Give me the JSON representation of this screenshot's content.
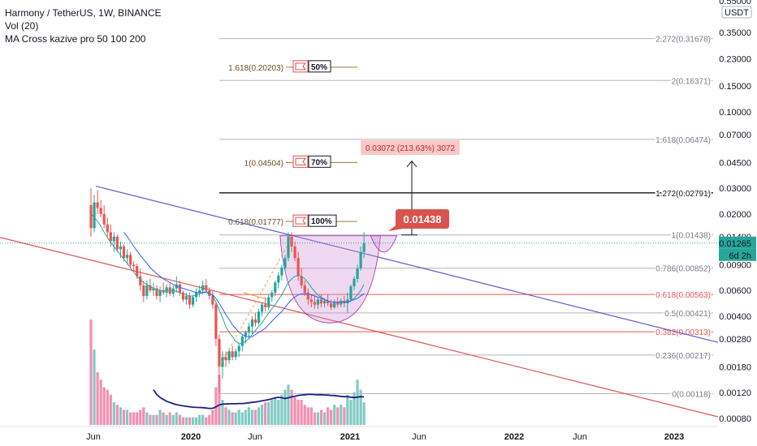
{
  "legend": {
    "title": "Harmony / TetherUS, 1W, BINANCE",
    "vol": "Vol (20)",
    "ma": "MA Cross kazive pro 50 100 200"
  },
  "colors": {
    "up": "#26a69a",
    "down": "#ef5350",
    "vol_up": "#80cbc4",
    "vol_down": "#f48fb1",
    "blue_trend": "#5b5bc8",
    "red_trend": "#d9534f",
    "fib_line": "#b2b5be",
    "fib_text": "#787b86",
    "cup_fill": "#ce93d8",
    "label_bg": "#d9534f",
    "proj_bg": "#f8c8c8",
    "proj_text": "#c62828"
  },
  "price_axis": {
    "currency": "USDT",
    "ticks": [
      "0.35000",
      "0.23000",
      "0.15000",
      "0.10000",
      "0.07000",
      "0.04500",
      "0.03000",
      "0.02000",
      "0.01400",
      "0.00900",
      "0.00600",
      "0.00400",
      "0.00280",
      "0.00180",
      "0.00120",
      "0.00080"
    ],
    "current_price": "0.01265",
    "countdown": "6d 2h",
    "top_partial": "0.55000"
  },
  "time_axis": {
    "ticks": [
      "Jun",
      "2020",
      "Jun",
      "2021",
      "Jun",
      "2022",
      "Jun",
      "2023"
    ]
  },
  "fib_levels": [
    {
      "label": "2.272(0.31678)",
      "price": 0.31678
    },
    {
      "label": "2(0.16371)",
      "price": 0.16371
    },
    {
      "label": "1.618(0.06474)",
      "price": 0.06474
    },
    {
      "label": "1.272(0.02791)",
      "price": 0.02791,
      "bold": true
    },
    {
      "label": "1(0.01438)",
      "price": 0.01438
    },
    {
      "label": "0.786(0.00852)",
      "price": 0.00852
    },
    {
      "label": "0.618(0.00563)",
      "price": 0.00563,
      "red": true
    },
    {
      "label": "0.5(0.00421)",
      "price": 0.00421
    },
    {
      "label": "0.382(0.00313)",
      "price": 0.00313,
      "red": true
    },
    {
      "label": "0.236(0.00217)",
      "price": 0.00217
    },
    {
      "label": "0(0.00118)",
      "price": 0.00118
    }
  ],
  "targets": [
    {
      "label": "1.618(0.20203)",
      "price": 0.20203,
      "pct": "50%"
    },
    {
      "label": "1(0.04504)",
      "price": 0.04504,
      "pct": "70%"
    },
    {
      "label": "0.618(0.01777)",
      "price": 0.01777,
      "pct": "100%"
    }
  ],
  "projection": {
    "label": "0.03072 (213.63%) 3072",
    "callout": "0.01438"
  },
  "chart_data": {
    "type": "candlestick",
    "title": "Harmony / TetherUS, 1W, BINANCE",
    "xlabel": "",
    "ylabel": "",
    "y_scale": "log",
    "ylim": [
      0.00075,
      0.56
    ],
    "weeks_from_start": "weekly candles starting 2019-06",
    "candles": [
      {
        "o": 0.023,
        "h": 0.03,
        "l": 0.014,
        "c": 0.016
      },
      {
        "o": 0.016,
        "h": 0.027,
        "l": 0.015,
        "c": 0.024
      },
      {
        "o": 0.024,
        "h": 0.029,
        "l": 0.02,
        "c": 0.022
      },
      {
        "o": 0.022,
        "h": 0.025,
        "l": 0.019,
        "c": 0.02
      },
      {
        "o": 0.02,
        "h": 0.023,
        "l": 0.016,
        "c": 0.017
      },
      {
        "o": 0.017,
        "h": 0.019,
        "l": 0.014,
        "c": 0.015
      },
      {
        "o": 0.015,
        "h": 0.017,
        "l": 0.012,
        "c": 0.013
      },
      {
        "o": 0.013,
        "h": 0.015,
        "l": 0.011,
        "c": 0.014
      },
      {
        "o": 0.014,
        "h": 0.0145,
        "l": 0.011,
        "c": 0.0115
      },
      {
        "o": 0.0115,
        "h": 0.013,
        "l": 0.01,
        "c": 0.012
      },
      {
        "o": 0.012,
        "h": 0.0125,
        "l": 0.0095,
        "c": 0.01
      },
      {
        "o": 0.01,
        "h": 0.0115,
        "l": 0.009,
        "c": 0.0105
      },
      {
        "o": 0.0105,
        "h": 0.011,
        "l": 0.0085,
        "c": 0.009
      },
      {
        "o": 0.009,
        "h": 0.0095,
        "l": 0.008,
        "c": 0.0088
      },
      {
        "o": 0.0088,
        "h": 0.0092,
        "l": 0.0072,
        "c": 0.0075
      },
      {
        "o": 0.0075,
        "h": 0.0085,
        "l": 0.006,
        "c": 0.0065
      },
      {
        "o": 0.0065,
        "h": 0.007,
        "l": 0.005,
        "c": 0.0055
      },
      {
        "o": 0.0055,
        "h": 0.007,
        "l": 0.0052,
        "c": 0.0065
      },
      {
        "o": 0.0065,
        "h": 0.0072,
        "l": 0.0058,
        "c": 0.006
      },
      {
        "o": 0.006,
        "h": 0.0068,
        "l": 0.0055,
        "c": 0.0062
      },
      {
        "o": 0.0062,
        "h": 0.0065,
        "l": 0.0052,
        "c": 0.0055
      },
      {
        "o": 0.0055,
        "h": 0.0064,
        "l": 0.005,
        "c": 0.006
      },
      {
        "o": 0.006,
        "h": 0.0068,
        "l": 0.0056,
        "c": 0.0058
      },
      {
        "o": 0.0058,
        "h": 0.0066,
        "l": 0.0054,
        "c": 0.0063
      },
      {
        "o": 0.0063,
        "h": 0.0067,
        "l": 0.0055,
        "c": 0.0057
      },
      {
        "o": 0.0057,
        "h": 0.0065,
        "l": 0.0054,
        "c": 0.0062
      },
      {
        "o": 0.0062,
        "h": 0.0075,
        "l": 0.0058,
        "c": 0.0066
      },
      {
        "o": 0.0066,
        "h": 0.007,
        "l": 0.0055,
        "c": 0.0058
      },
      {
        "o": 0.0058,
        "h": 0.006,
        "l": 0.005,
        "c": 0.0052
      },
      {
        "o": 0.0052,
        "h": 0.0058,
        "l": 0.0048,
        "c": 0.0055
      },
      {
        "o": 0.0055,
        "h": 0.0058,
        "l": 0.0045,
        "c": 0.0048
      },
      {
        "o": 0.0048,
        "h": 0.0056,
        "l": 0.0046,
        "c": 0.0054
      },
      {
        "o": 0.0054,
        "h": 0.0062,
        "l": 0.005,
        "c": 0.0058
      },
      {
        "o": 0.0058,
        "h": 0.0065,
        "l": 0.0054,
        "c": 0.006
      },
      {
        "o": 0.006,
        "h": 0.007,
        "l": 0.0056,
        "c": 0.0065
      },
      {
        "o": 0.0065,
        "h": 0.0072,
        "l": 0.0058,
        "c": 0.006
      },
      {
        "o": 0.006,
        "h": 0.0063,
        "l": 0.0052,
        "c": 0.0055
      },
      {
        "o": 0.0055,
        "h": 0.006,
        "l": 0.0045,
        "c": 0.0048
      },
      {
        "o": 0.0048,
        "h": 0.005,
        "l": 0.0025,
        "c": 0.0028
      },
      {
        "o": 0.0028,
        "h": 0.003,
        "l": 0.0012,
        "c": 0.0018
      },
      {
        "o": 0.0018,
        "h": 0.0023,
        "l": 0.0015,
        "c": 0.0021
      },
      {
        "o": 0.0021,
        "h": 0.0023,
        "l": 0.0018,
        "c": 0.002
      },
      {
        "o": 0.002,
        "h": 0.0024,
        "l": 0.0019,
        "c": 0.0023
      },
      {
        "o": 0.0023,
        "h": 0.0025,
        "l": 0.002,
        "c": 0.0021
      },
      {
        "o": 0.0021,
        "h": 0.0024,
        "l": 0.002,
        "c": 0.0023
      },
      {
        "o": 0.0023,
        "h": 0.0026,
        "l": 0.0021,
        "c": 0.0025
      },
      {
        "o": 0.0025,
        "h": 0.003,
        "l": 0.0023,
        "c": 0.0029
      },
      {
        "o": 0.0029,
        "h": 0.0032,
        "l": 0.0026,
        "c": 0.0031
      },
      {
        "o": 0.0031,
        "h": 0.0036,
        "l": 0.0028,
        "c": 0.0034
      },
      {
        "o": 0.0034,
        "h": 0.004,
        "l": 0.003,
        "c": 0.0038
      },
      {
        "o": 0.0038,
        "h": 0.0042,
        "l": 0.0034,
        "c": 0.0036
      },
      {
        "o": 0.0036,
        "h": 0.0045,
        "l": 0.0035,
        "c": 0.0043
      },
      {
        "o": 0.0043,
        "h": 0.005,
        "l": 0.004,
        "c": 0.0048
      },
      {
        "o": 0.0048,
        "h": 0.0054,
        "l": 0.0043,
        "c": 0.0046
      },
      {
        "o": 0.0046,
        "h": 0.0056,
        "l": 0.0044,
        "c": 0.0054
      },
      {
        "o": 0.0054,
        "h": 0.006,
        "l": 0.005,
        "c": 0.0058
      },
      {
        "o": 0.0058,
        "h": 0.007,
        "l": 0.0055,
        "c": 0.0068
      },
      {
        "o": 0.0068,
        "h": 0.008,
        "l": 0.0062,
        "c": 0.0076
      },
      {
        "o": 0.0076,
        "h": 0.009,
        "l": 0.007,
        "c": 0.0086
      },
      {
        "o": 0.0086,
        "h": 0.0105,
        "l": 0.008,
        "c": 0.01
      },
      {
        "o": 0.01,
        "h": 0.015,
        "l": 0.0095,
        "c": 0.014
      },
      {
        "o": 0.014,
        "h": 0.015,
        "l": 0.011,
        "c": 0.012
      },
      {
        "o": 0.012,
        "h": 0.013,
        "l": 0.0095,
        "c": 0.01
      },
      {
        "o": 0.01,
        "h": 0.011,
        "l": 0.007,
        "c": 0.0075
      },
      {
        "o": 0.0075,
        "h": 0.0085,
        "l": 0.0062,
        "c": 0.0065
      },
      {
        "o": 0.0065,
        "h": 0.007,
        "l": 0.0055,
        "c": 0.0058
      },
      {
        "o": 0.0058,
        "h": 0.0062,
        "l": 0.0048,
        "c": 0.0052
      },
      {
        "o": 0.0052,
        "h": 0.0056,
        "l": 0.0046,
        "c": 0.005
      },
      {
        "o": 0.005,
        "h": 0.0055,
        "l": 0.0045,
        "c": 0.0048
      },
      {
        "o": 0.0048,
        "h": 0.0054,
        "l": 0.0045,
        "c": 0.0052
      },
      {
        "o": 0.0052,
        "h": 0.0056,
        "l": 0.0046,
        "c": 0.0049
      },
      {
        "o": 0.0049,
        "h": 0.0053,
        "l": 0.0046,
        "c": 0.0051
      },
      {
        "o": 0.0051,
        "h": 0.0056,
        "l": 0.0047,
        "c": 0.0049
      },
      {
        "o": 0.0049,
        "h": 0.0052,
        "l": 0.0044,
        "c": 0.0046
      },
      {
        "o": 0.0046,
        "h": 0.0052,
        "l": 0.0045,
        "c": 0.005
      },
      {
        "o": 0.005,
        "h": 0.0054,
        "l": 0.0046,
        "c": 0.0048
      },
      {
        "o": 0.0048,
        "h": 0.0053,
        "l": 0.0046,
        "c": 0.0051
      },
      {
        "o": 0.0051,
        "h": 0.0055,
        "l": 0.0046,
        "c": 0.0049
      },
      {
        "o": 0.0049,
        "h": 0.0058,
        "l": 0.0042,
        "c": 0.0052
      },
      {
        "o": 0.0052,
        "h": 0.0066,
        "l": 0.005,
        "c": 0.0064
      },
      {
        "o": 0.0064,
        "h": 0.0075,
        "l": 0.006,
        "c": 0.0072
      },
      {
        "o": 0.0072,
        "h": 0.009,
        "l": 0.0068,
        "c": 0.0085
      },
      {
        "o": 0.0085,
        "h": 0.012,
        "l": 0.0082,
        "c": 0.011
      },
      {
        "o": 0.011,
        "h": 0.015,
        "l": 0.01,
        "c": 0.0126
      }
    ],
    "volume": [
      0.42,
      0.3,
      0.21,
      0.18,
      0.15,
      0.14,
      0.12,
      0.09,
      0.08,
      0.07,
      0.06,
      0.06,
      0.05,
      0.05,
      0.05,
      0.06,
      0.07,
      0.05,
      0.04,
      0.04,
      0.04,
      0.06,
      0.05,
      0.04,
      0.05,
      0.04,
      0.05,
      0.04,
      0.03,
      0.03,
      0.03,
      0.03,
      0.03,
      0.04,
      0.04,
      0.03,
      0.04,
      0.06,
      0.15,
      0.2,
      0.1,
      0.07,
      0.06,
      0.05,
      0.05,
      0.06,
      0.05,
      0.06,
      0.07,
      0.06,
      0.06,
      0.07,
      0.08,
      0.09,
      0.09,
      0.1,
      0.11,
      0.1,
      0.12,
      0.14,
      0.16,
      0.14,
      0.11,
      0.1,
      0.1,
      0.08,
      0.07,
      0.07,
      0.05,
      0.05,
      0.06,
      0.05,
      0.07,
      0.06,
      0.08,
      0.07,
      0.08,
      0.07,
      0.12,
      0.1,
      0.13,
      0.18,
      0.14,
      0.09
    ],
    "series": [
      {
        "values": [
          0.02,
          0.019,
          0.0178,
          0.0165,
          0.015,
          0.0138,
          0.0128,
          0.012,
          0.0112,
          0.0105,
          0.0098,
          0.0092,
          0.0086,
          0.008,
          0.0075,
          0.0071,
          0.0068,
          0.0066,
          0.0064,
          0.0062,
          0.0061,
          0.006,
          0.006,
          0.006,
          0.006,
          0.006,
          0.0059,
          0.0058,
          0.0057,
          0.0056,
          0.0055,
          0.0055,
          0.0056,
          0.0057,
          0.0058,
          0.0059,
          0.0058,
          0.0055,
          0.005,
          0.0044,
          0.0039,
          0.0034,
          0.0031,
          0.0029,
          0.0027,
          0.0026,
          0.0026,
          0.0027,
          0.0028,
          0.003,
          0.0032,
          0.0034,
          0.0036,
          0.0039,
          0.0042,
          0.0045,
          0.0048,
          0.0052,
          0.0056,
          0.0062,
          0.0068,
          0.0072,
          0.0075,
          0.0076,
          0.0075,
          0.0072,
          0.0068,
          0.0063,
          0.0059,
          0.0056,
          0.0054,
          0.0052,
          0.0051,
          0.005,
          0.005,
          0.005,
          0.005,
          0.005,
          0.005,
          0.0051,
          0.0053,
          0.0056,
          0.006,
          0.0066
        ]
      },
      {
        "values": [
          null,
          null,
          null,
          null,
          null,
          null,
          null,
          null,
          null,
          null,
          0.015,
          0.014,
          0.013,
          0.012,
          0.0112,
          0.0104,
          0.0098,
          0.0092,
          0.0086,
          0.0082,
          0.0078,
          0.0075,
          0.0072,
          0.007,
          0.0068,
          0.0066,
          0.0064,
          0.0063,
          0.0062,
          0.0061,
          0.006,
          0.0059,
          0.0058,
          0.0058,
          0.0058,
          0.0058,
          0.0057,
          0.0056,
          0.0053,
          0.0049,
          0.0045,
          0.0041,
          0.0038,
          0.0035,
          0.0033,
          0.0031,
          0.003,
          0.0029,
          0.0029,
          0.0029,
          0.003,
          0.0031,
          0.0032,
          0.0033,
          0.0035,
          0.0037,
          0.0039,
          0.0041,
          0.0043,
          0.0046,
          0.0049,
          0.0052,
          0.0054,
          0.0056,
          0.0057,
          0.0057,
          0.0057,
          0.0056,
          0.0055,
          0.0054,
          0.0053,
          0.0052,
          0.0051,
          0.005,
          0.005,
          0.005,
          0.005,
          0.005,
          0.005,
          0.0051,
          0.0052,
          0.0053,
          0.0055,
          0.0057
        ]
      }
    ]
  }
}
